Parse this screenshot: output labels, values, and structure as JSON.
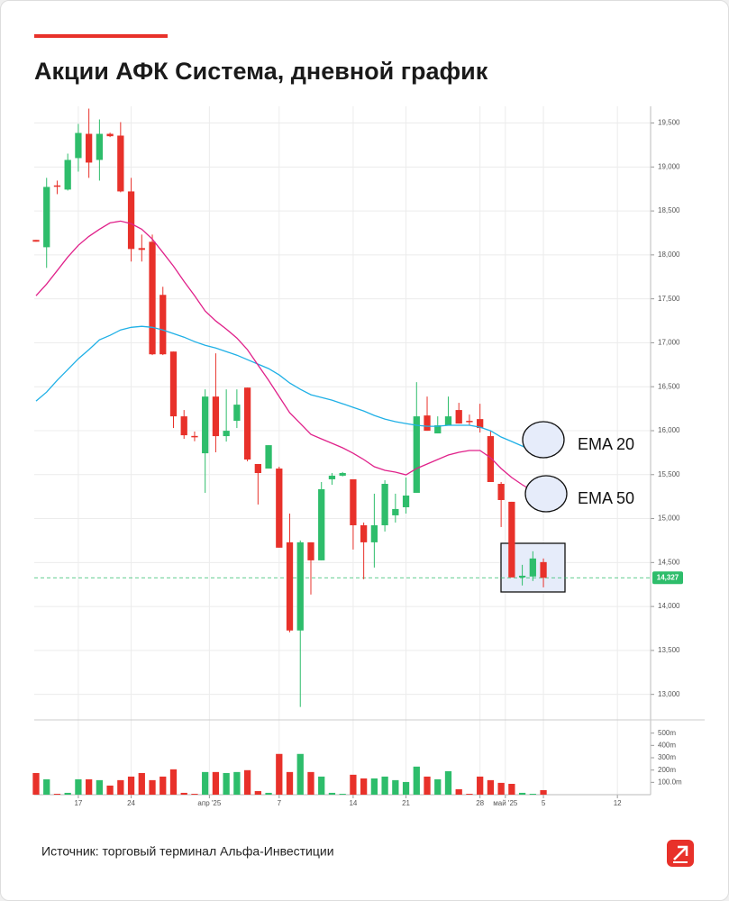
{
  "chart_data": {
    "type": "candlestick",
    "title": "Акции АФК Система, дневной график",
    "source": "Источник: торговый терминал Альфа-Инвестиции",
    "up_color": "#2ebd6b",
    "down_color": "#e8312a",
    "grid": true,
    "open": [
      18170,
      18087,
      18790,
      18743,
      19101,
      19377,
      19080,
      19377,
      19357,
      18722,
      18077,
      18149,
      17545,
      16900,
      16163,
      15940,
      15743,
      16388,
      15938,
      16112,
      16490,
      15621,
      15569,
      15569,
      14730,
      13727,
      14730,
      14525,
      15447,
      15488,
      15447,
      14924,
      14730,
      14924,
      15037,
      15129,
      15293,
      16173,
      15969,
      16061,
      16235,
      16112,
      16132,
      15938,
      15395,
      15191,
      14330,
      14341,
      14505
    ],
    "high": [
      18170,
      18876,
      18845,
      19152,
      19490,
      19664,
      19541,
      19390,
      19510,
      18876,
      18231,
      18231,
      17637,
      16900,
      16235,
      15990,
      16470,
      16880,
      16470,
      16470,
      16490,
      15621,
      15835,
      15590,
      15057,
      14751,
      14730,
      15416,
      15518,
      15530,
      15447,
      14955,
      15283,
      15436,
      15283,
      15467,
      16552,
      16388,
      16163,
      16388,
      16317,
      16183,
      16306,
      15999,
      15416,
      15191,
      14474,
      14628,
      14546
    ],
    "low": [
      18150,
      17852,
      18691,
      18732,
      18947,
      18876,
      18845,
      19340,
      18712,
      17924,
      17924,
      16860,
      16860,
      16030,
      15907,
      15880,
      15293,
      15754,
      15876,
      16030,
      15651,
      15160,
      15569,
      14669,
      13707,
      12857,
      14136,
      14525,
      15385,
      15480,
      14648,
      14310,
      14443,
      14853,
      14955,
      15057,
      15293,
      15999,
      15969,
      16061,
      16081,
      16061,
      15979,
      15416,
      14904,
      14331,
      14239,
      14290,
      14218
    ],
    "close": [
      18150,
      18773,
      18780,
      19080,
      19387,
      19050,
      19377,
      19350,
      18722,
      18067,
      18057,
      16869,
      16869,
      16163,
      15948,
      15937,
      16388,
      15938,
      15999,
      16296,
      15672,
      15518,
      15835,
      14669,
      13727,
      14730,
      14525,
      15334,
      15488,
      15518,
      14924,
      14730,
      14924,
      15395,
      15109,
      15262,
      16163,
      15999,
      16061,
      16163,
      16081,
      16102,
      16030,
      15416,
      15211,
      14331,
      14350,
      14546,
      14327
    ],
    "series": [
      {
        "name": "EMA 20",
        "color": "#1fb0e6",
        "values": [
          16337,
          16439,
          16573,
          16695,
          16818,
          16921,
          17033,
          17084,
          17146,
          17176,
          17187,
          17176,
          17146,
          17105,
          17064,
          17013,
          16972,
          16941,
          16900,
          16859,
          16808,
          16757,
          16706,
          16634,
          16542,
          16470,
          16409,
          16378,
          16347,
          16306,
          16265,
          16224,
          16173,
          16132,
          16102,
          16081,
          16061,
          16050,
          16050,
          16061,
          16061,
          16061,
          16040,
          15999,
          15928,
          15877,
          15825,
          15774,
          null
        ]
      },
      {
        "name": "EMA 50",
        "color": "#e0218a",
        "values": [
          17535,
          17668,
          17821,
          17975,
          18108,
          18210,
          18292,
          18364,
          18384,
          18354,
          18292,
          18180,
          18026,
          17872,
          17698,
          17535,
          17361,
          17248,
          17156,
          17054,
          16921,
          16747,
          16573,
          16388,
          16204,
          16081,
          15958,
          15907,
          15856,
          15805,
          15743,
          15672,
          15590,
          15549,
          15528,
          15498,
          15569,
          15621,
          15672,
          15723,
          15754,
          15774,
          15774,
          15692,
          15569,
          15467,
          15385,
          15313,
          null
        ]
      }
    ],
    "last_price": {
      "value": 14327,
      "label": "14,327"
    },
    "ylim": [
      12720,
      19690
    ],
    "yticks": [
      {
        "value": 13000,
        "label": "13,000"
      },
      {
        "value": 13500,
        "label": "13,500"
      },
      {
        "value": 14000,
        "label": "14,000"
      },
      {
        "value": 14500,
        "label": "14,500"
      },
      {
        "value": 15000,
        "label": "15,000"
      },
      {
        "value": 15500,
        "label": "15,500"
      },
      {
        "value": 16000,
        "label": "16,000"
      },
      {
        "value": 16500,
        "label": "16,500"
      },
      {
        "value": 17000,
        "label": "17,000"
      },
      {
        "value": 17500,
        "label": "17,500"
      },
      {
        "value": 18000,
        "label": "18,000"
      },
      {
        "value": 18500,
        "label": "18,500"
      },
      {
        "value": 19000,
        "label": "19,000"
      },
      {
        "value": 19500,
        "label": "19,500"
      }
    ],
    "xlim": [
      -0.17,
      58.14
    ],
    "xticks": [
      {
        "value": 4,
        "label": "17"
      },
      {
        "value": 9,
        "label": "24"
      },
      {
        "value": 16.4,
        "label": "апр '25"
      },
      {
        "value": 23,
        "label": "7"
      },
      {
        "value": 30,
        "label": "14"
      },
      {
        "value": 35,
        "label": "21"
      },
      {
        "value": 42,
        "label": "28"
      },
      {
        "value": 44.4,
        "label": "май '25"
      },
      {
        "value": 48,
        "label": "5"
      },
      {
        "value": 55,
        "label": "12"
      }
    ],
    "volume": {
      "values": [
        176,
        125,
        7,
        15,
        125,
        125,
        118,
        74,
        118,
        147,
        176,
        118,
        147,
        206,
        15,
        7,
        184,
        184,
        176,
        184,
        199,
        29,
        15,
        331,
        184,
        331,
        184,
        147,
        15,
        7,
        162,
        132,
        132,
        147,
        118,
        103,
        228,
        147,
        125,
        191,
        44,
        7,
        147,
        118,
        96,
        88,
        15,
        7,
        37
      ],
      "ylim": [
        0,
        600
      ],
      "yticks": [
        {
          "value": 100,
          "label": "100.0m"
        },
        {
          "value": 200,
          "label": "200m"
        },
        {
          "value": 300,
          "label": "300m"
        },
        {
          "value": 400,
          "label": "400m"
        },
        {
          "value": 500,
          "label": "500m"
        }
      ]
    }
  }
}
